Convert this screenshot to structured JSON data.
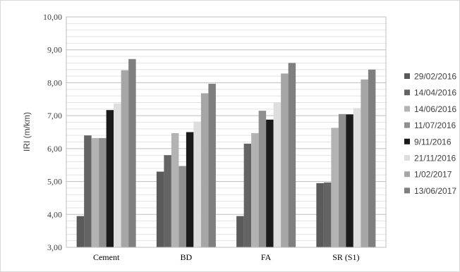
{
  "chart_data": {
    "type": "bar",
    "title": "",
    "xlabel": "",
    "ylabel": "IRI (m/km)",
    "ylim": [
      3,
      10
    ],
    "ytick_labels": [
      "3,00",
      "4,00",
      "5,00",
      "6,00",
      "7,00",
      "8,00",
      "9,00",
      "10,00"
    ],
    "grid": true,
    "legend_position": "right",
    "categories": [
      "Cement",
      "BD",
      "FA",
      "SR (S1)"
    ],
    "series": [
      {
        "name": "29/02/2016",
        "color": "#5a5a5a",
        "values": [
          3.95,
          5.3,
          3.95,
          4.95
        ]
      },
      {
        "name": "14/04/2016",
        "color": "#646464",
        "values": [
          6.4,
          5.8,
          6.15,
          4.97
        ]
      },
      {
        "name": "14/06/2016",
        "color": "#b3b3b3",
        "values": [
          6.32,
          6.47,
          6.47,
          6.63
        ]
      },
      {
        "name": "11/07/2016",
        "color": "#8f8f8f",
        "values": [
          6.32,
          5.47,
          7.15,
          7.05
        ]
      },
      {
        "name": "9/11/2016",
        "color": "#1a1a1a",
        "values": [
          7.17,
          6.5,
          6.88,
          7.04
        ]
      },
      {
        "name": "21/11/2016",
        "color": "#dedede",
        "values": [
          7.37,
          6.82,
          7.4,
          7.23
        ]
      },
      {
        "name": "1/02/2017",
        "color": "#a6a6a6",
        "values": [
          8.38,
          7.68,
          8.28,
          8.1
        ]
      },
      {
        "name": "13/06/2017",
        "color": "#7f7f7f",
        "values": [
          8.72,
          7.97,
          8.6,
          8.4
        ]
      }
    ]
  }
}
